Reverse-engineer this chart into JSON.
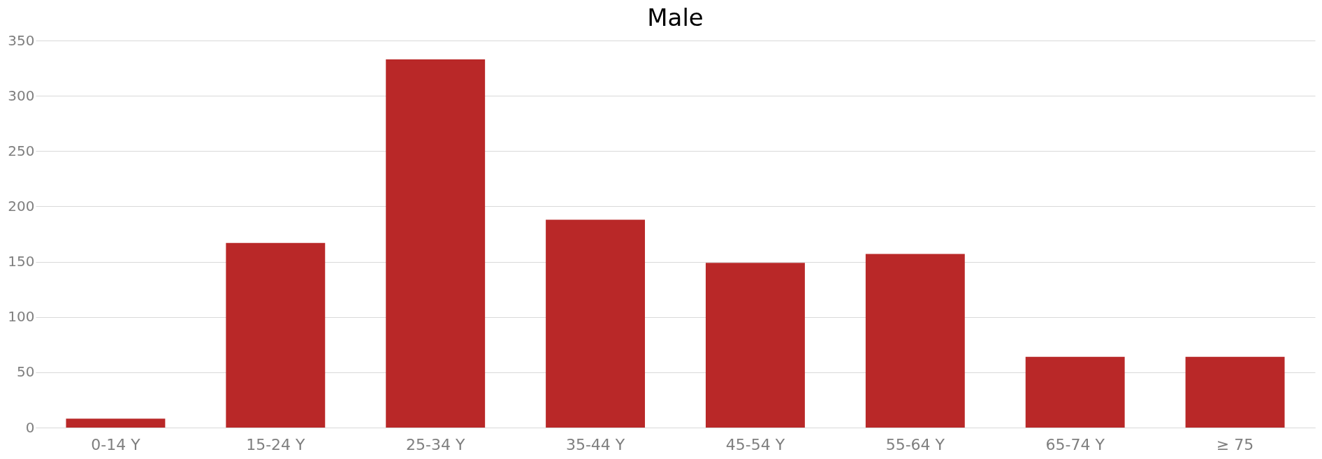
{
  "chart_data": {
    "type": "bar",
    "title": "Male",
    "categories": [
      "0-14 Y",
      "15-24 Y",
      "25-34 Y",
      "35-44 Y",
      "45-54 Y",
      "55-64 Y",
      "65-74 Y",
      "≥ 75"
    ],
    "values": [
      8,
      167,
      333,
      188,
      149,
      157,
      64,
      64
    ],
    "color": "#b92828",
    "ylim": [
      0,
      350
    ],
    "yticks": [
      0,
      50,
      100,
      150,
      200,
      250,
      300,
      350
    ],
    "grid": "y"
  }
}
